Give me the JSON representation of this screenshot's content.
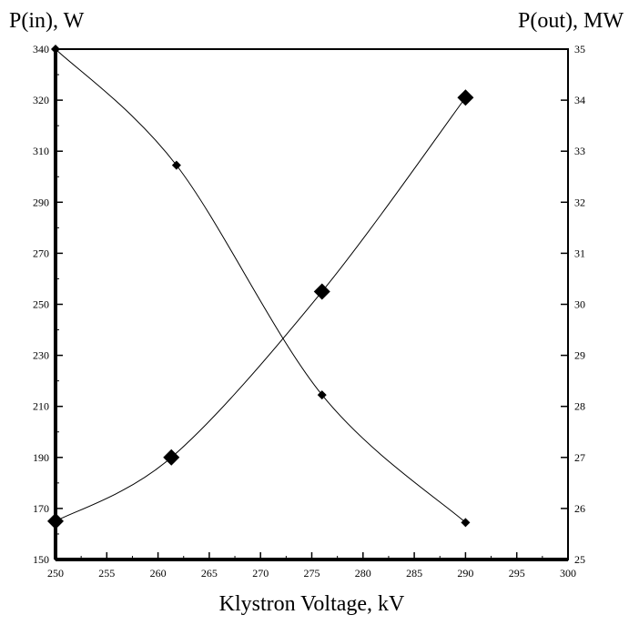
{
  "chart_data": {
    "type": "line",
    "title": "",
    "xlabel": "Klystron Voltage, kV",
    "ylabel_left": "P(in), W",
    "ylabel_right": "P(out), MW",
    "xlim": [
      250,
      300
    ],
    "xticks": [
      250,
      255,
      260,
      265,
      270,
      275,
      280,
      285,
      290,
      295,
      300
    ],
    "yticks_left": [
      150,
      170,
      190,
      210,
      230,
      250,
      270,
      290,
      310,
      320,
      340
    ],
    "yticks_right": [
      25,
      26,
      27,
      28,
      29,
      30,
      31,
      32,
      33,
      34,
      35
    ],
    "ylim_right": [
      25,
      35
    ],
    "grid": false,
    "legend": "none",
    "series": [
      {
        "axis": "left",
        "marker": "small-diamond",
        "x": [
          250,
          261.8,
          276,
          290
        ],
        "y": [
          340,
          304.5,
          214.5,
          164.5
        ]
      },
      {
        "axis": "right",
        "marker": "large-diamond",
        "x": [
          250,
          261.3,
          276,
          290
        ],
        "y": [
          25.75,
          27.0,
          30.25,
          34.05
        ]
      }
    ]
  }
}
